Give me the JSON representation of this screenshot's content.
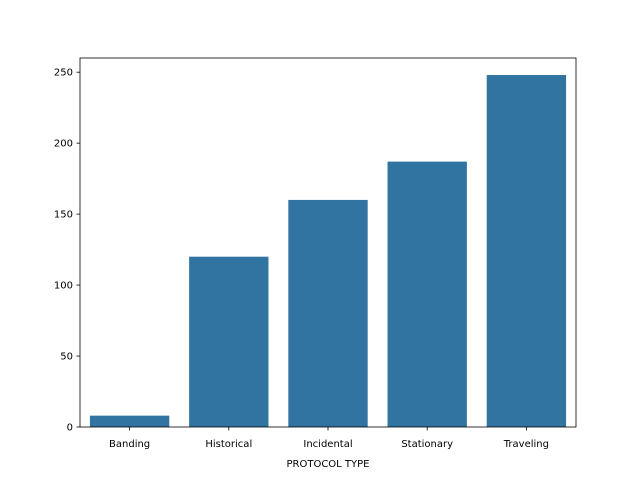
{
  "chart_data": {
    "type": "bar",
    "title": "",
    "xlabel": "PROTOCOL TYPE",
    "ylabel": "",
    "categories": [
      "Banding",
      "Historical",
      "Incidental",
      "Stationary",
      "Traveling"
    ],
    "values": [
      8,
      120,
      160,
      187,
      248
    ],
    "ylim": [
      0,
      260
    ],
    "yticks": [
      0,
      50,
      100,
      150,
      200,
      250
    ],
    "grid": false,
    "legend": "none",
    "bar_color": "#3274a1"
  }
}
